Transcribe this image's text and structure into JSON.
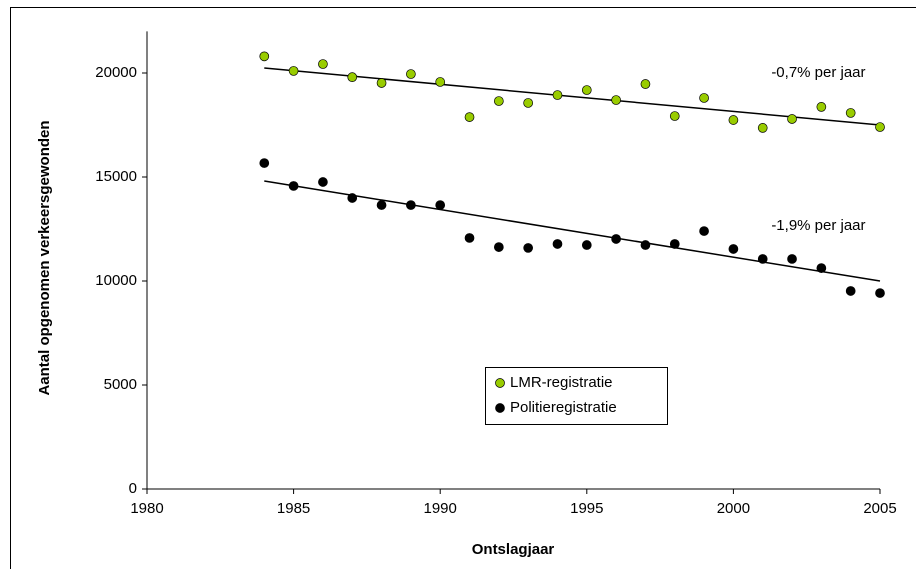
{
  "chart_data": {
    "type": "scatter",
    "x_label": "Ontslagjaar",
    "y_label": "Aantal opgenomen verkeersgewonden",
    "x": [
      1984,
      1985,
      1986,
      1987,
      1988,
      1989,
      1990,
      1991,
      1992,
      1993,
      1994,
      1995,
      1996,
      1997,
      1998,
      1999,
      2000,
      2001,
      2002,
      2003,
      2004,
      2005
    ],
    "series": [
      {
        "name": "LMR-registratie",
        "color": "#99cc00",
        "values": [
          20800,
          20100,
          20430,
          19800,
          19520,
          19950,
          19570,
          17880,
          18650,
          18560,
          18940,
          19180,
          18700,
          19470,
          17930,
          18800,
          17740,
          17360,
          17790,
          18370,
          18080,
          17400
        ],
        "trendline": {
          "x": [
            1984,
            2005
          ],
          "values": [
            20240,
            17500
          ]
        }
      },
      {
        "name": "Politieregistratie",
        "color": "#000000",
        "values": [
          15670,
          14570,
          14760,
          13990,
          13650,
          13650,
          13650,
          12070,
          11630,
          11590,
          11780,
          11730,
          12020,
          11730,
          11780,
          12400,
          11540,
          11060,
          11060,
          10620,
          9520,
          9420
        ],
        "trendline": {
          "x": [
            1984,
            2005
          ],
          "values": [
            14810,
            10000
          ]
        }
      }
    ],
    "annotations": [
      {
        "text": "-0,7% per jaar",
        "x": 2002.9,
        "y": 20000
      },
      {
        "text": "-1,9% per jaar",
        "x": 2002.9,
        "y": 12650
      }
    ],
    "xlim": [
      1980,
      2005
    ],
    "xticks": [
      1980,
      1985,
      1990,
      1995,
      2000,
      2005
    ],
    "ylim": [
      0,
      22000
    ],
    "yticks": [
      0,
      5000,
      10000,
      15000,
      20000
    ],
    "legend": "center"
  }
}
